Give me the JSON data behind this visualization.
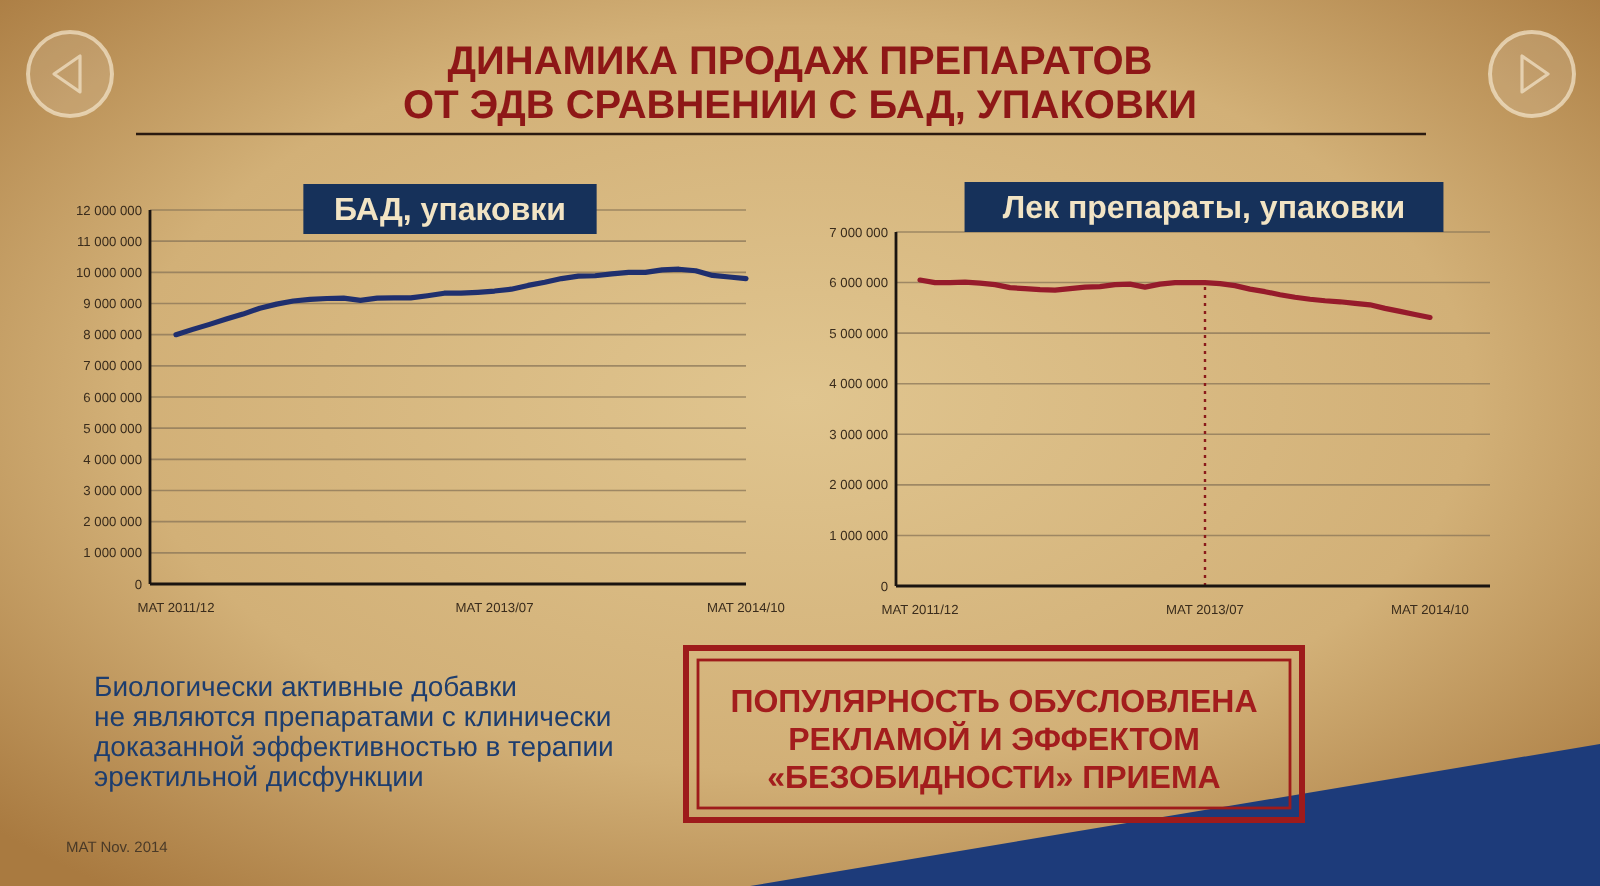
{
  "chart_data": [
    {
      "type": "other",
      "title": "ДИНАМИКА ПРОДАЖ ПРЕПАРАТОВ\nОТ ЭДВ СРАВНЕНИИ С БАД, УПАКОВКИ"
    },
    {
      "type": "line",
      "title": "БАД, упаковки",
      "categories": [
        "MAT 2011/12",
        null,
        null,
        null,
        null,
        null,
        null,
        null,
        null,
        null,
        null,
        null,
        null,
        null,
        null,
        null,
        null,
        null,
        null,
        "MAT 2013/07",
        null,
        null,
        null,
        null,
        null,
        null,
        null,
        null,
        null,
        null,
        null,
        null,
        null,
        null,
        "MAT 2014/10"
      ],
      "series": [
        {
          "color": "#1f2f6e",
          "values": [
            8000000,
            8170000,
            8330000,
            8500000,
            8660000,
            8850000,
            8980000,
            9080000,
            9130000,
            9160000,
            9170000,
            9100000,
            9170000,
            9180000,
            9180000,
            9250000,
            9330000,
            9330000,
            9360000,
            9400000,
            9460000,
            9580000,
            9680000,
            9800000,
            9880000,
            9890000,
            9950000,
            10000000,
            10000000,
            10080000,
            10100000,
            10050000,
            9900000,
            9850000,
            9800000
          ]
        }
      ],
      "ylim": [
        0,
        12000000
      ],
      "yticks": [
        0,
        {
          "value": 1000000,
          "label": "1 000 000"
        },
        {
          "value": 2000000,
          "label": "2 000 000"
        },
        {
          "value": 3000000,
          "label": "3 000 000"
        },
        {
          "value": 4000000,
          "label": "4 000 000"
        },
        {
          "value": 5000000,
          "label": "5 000 000"
        },
        {
          "value": 6000000,
          "label": "6 000 000"
        },
        {
          "value": 7000000,
          "label": "7 000 000"
        },
        {
          "value": 8000000,
          "label": "8 000 000"
        },
        {
          "value": 9000000,
          "label": "9 000 000"
        },
        {
          "value": 10000000,
          "label": "10 000 000"
        },
        {
          "value": 11000000,
          "label": "11 000 000"
        },
        {
          "value": 12000000,
          "label": "12 000 000"
        }
      ],
      "grid": "y"
    },
    {
      "type": "line",
      "title": "Лек препараты, упаковки",
      "categories": [
        "MAT 2011/12",
        null,
        null,
        null,
        null,
        null,
        null,
        null,
        null,
        null,
        null,
        null,
        null,
        null,
        null,
        null,
        null,
        null,
        null,
        "MAT 2013/07",
        null,
        null,
        null,
        null,
        null,
        null,
        null,
        null,
        null,
        null,
        null,
        null,
        null,
        null,
        "MAT 2014/10"
      ],
      "series": [
        {
          "color": "#961b2b",
          "values": [
            6050000,
            6000000,
            6000000,
            6010000,
            5990000,
            5960000,
            5900000,
            5880000,
            5860000,
            5850000,
            5880000,
            5910000,
            5920000,
            5960000,
            5970000,
            5910000,
            5970000,
            6000000,
            6000000,
            6000000,
            5980000,
            5940000,
            5870000,
            5820000,
            5760000,
            5710000,
            5670000,
            5640000,
            5620000,
            5590000,
            5560000,
            5490000,
            5430000,
            5370000,
            5310000
          ]
        }
      ],
      "ylim": [
        0,
        7000000
      ],
      "yticks": [
        0,
        {
          "value": 1000000,
          "label": "1 000 000"
        },
        {
          "value": 2000000,
          "label": "2 000 000"
        },
        {
          "value": 3000000,
          "label": "3 000 000"
        },
        {
          "value": 4000000,
          "label": "4 000 000"
        },
        {
          "value": 5000000,
          "label": "5 000 000"
        },
        {
          "value": 6000000,
          "label": "6 000 000"
        },
        {
          "value": 7000000,
          "label": "7 000 000"
        }
      ],
      "grid": "y",
      "ref_lines": [
        {
          "axis": "x",
          "value": "MAT 2013/07",
          "color": "#8b1a1a",
          "line_style": "dotted"
        }
      ]
    },
    {
      "type": "other",
      "annotations": [
        "Биологически активные добавки\nне являются препаратами с клинически\nдоказанной эффективностью в терапии\nэректильной дисфункции",
        "ПОПУЛЯРНОСТЬ ОБУСЛОВЛЕНА\nРЕКЛАМОЙ И ЭФФЕКТОМ\n«БЕЗОБИДНОСТИ» ПРИЕМА",
        "MAT Nov. 2014"
      ]
    }
  ]
}
